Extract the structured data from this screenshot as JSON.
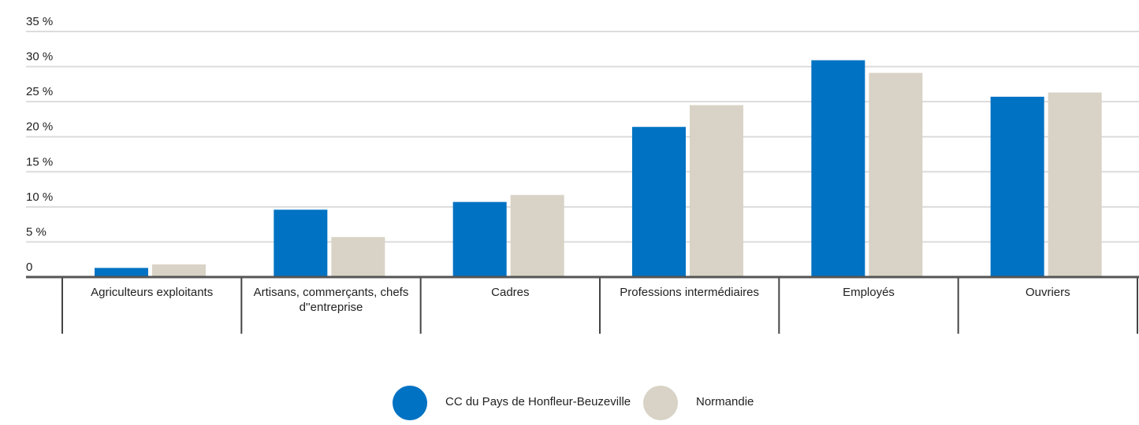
{
  "chart_data": {
    "type": "bar",
    "categories": [
      "Agriculteurs exploitants",
      "Artisans, commerçants, chefs d''entreprise",
      "Cadres",
      "Professions intermédiaires",
      "Employés",
      "Ouvriers"
    ],
    "series": [
      {
        "name": "CC du Pays de Honfleur-Beuzeville",
        "color": "#0072c3",
        "values": [
          1.3,
          9.6,
          10.7,
          21.4,
          30.9,
          25.7
        ]
      },
      {
        "name": "Normandie",
        "color": "#d8d3c6",
        "values": [
          1.8,
          5.7,
          11.7,
          24.5,
          29.1,
          26.3
        ]
      }
    ],
    "ylim": [
      0,
      35
    ],
    "yticks": [
      0,
      {
        "value": 5,
        "label": "5 %"
      },
      {
        "value": 10,
        "label": "10 %"
      },
      {
        "value": 15,
        "label": "15 %"
      },
      {
        "value": 20,
        "label": "20 %"
      },
      {
        "value": 25,
        "label": "25 %"
      },
      {
        "value": 30,
        "label": "30 %"
      },
      {
        "value": 35,
        "label": "35 %"
      }
    ],
    "grid": true,
    "legend": "bottom"
  }
}
